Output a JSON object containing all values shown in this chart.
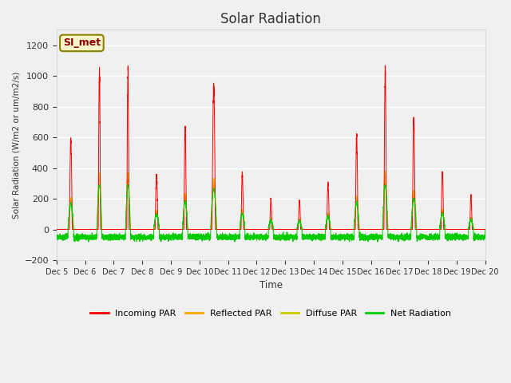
{
  "title": "Solar Radiation",
  "ylabel": "Solar Radiation (W/m2 or um/m2/s)",
  "xlabel": "Time",
  "ylim": [
    -200,
    1300
  ],
  "yticks": [
    -200,
    0,
    200,
    400,
    600,
    800,
    1000,
    1200
  ],
  "plot_bg_color": "#f0f0f0",
  "fig_bg_color": "#f0f0f0",
  "annotation_text": "SI_met",
  "annotation_color": "#8B0000",
  "annotation_bg": "#f5f5c8",
  "annotation_border": "#8B8000",
  "series_colors": {
    "incoming": "#ff0000",
    "reflected": "#ffa500",
    "diffuse": "#cccc00",
    "net": "#00cc00"
  },
  "legend": [
    "Incoming PAR",
    "Reflected PAR",
    "Diffuse PAR",
    "Net Radiation"
  ],
  "n_points": 7200,
  "days": 15,
  "start_day": 5,
  "incoming_peaks": [
    590,
    1030,
    1030,
    350,
    660,
    940,
    360,
    200,
    190,
    300,
    610,
    1030,
    710,
    370,
    220
  ],
  "peak_widths": [
    0.1,
    0.08,
    0.08,
    0.1,
    0.09,
    0.12,
    0.09,
    0.08,
    0.08,
    0.09,
    0.09,
    0.09,
    0.1,
    0.09,
    0.08
  ],
  "diffuse_widths": [
    0.18,
    0.16,
    0.16,
    0.18,
    0.17,
    0.2,
    0.17,
    0.16,
    0.16,
    0.17,
    0.17,
    0.17,
    0.18,
    0.17,
    0.16
  ]
}
